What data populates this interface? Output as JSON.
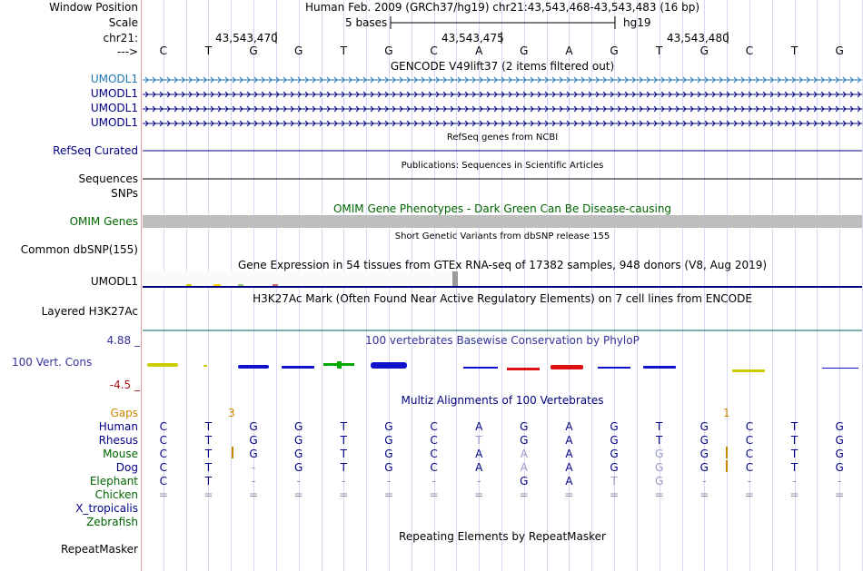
{
  "header": {
    "window_position_label": "Window Position",
    "scale_label": "Scale",
    "chrom_label": "chr21:",
    "arrow_label": "--->",
    "assembly_title": "Human Feb. 2009 (GRCh37/hg19)   chr21:43,543,468-43,543,483 (16 bp)",
    "scale_text": "5 bases",
    "scale_db": "hg19",
    "positions": [
      "43,543,470",
      "43,543,475",
      "43,543,480"
    ],
    "bases": [
      "C",
      "T",
      "G",
      "G",
      "T",
      "G",
      "C",
      "A",
      "G",
      "A",
      "G",
      "T",
      "G",
      "C",
      "T",
      "G"
    ]
  },
  "gencode": {
    "title": "GENCODE V49lift37 (2 items filtered out)",
    "genes": [
      "UMODL1",
      "UMODL1",
      "UMODL1",
      "UMODL1"
    ]
  },
  "refseq": {
    "title": "RefSeq genes from NCBI",
    "label": "RefSeq Curated"
  },
  "publications": {
    "title": "Publications: Sequences in Scientific Articles",
    "label": "Sequences"
  },
  "snps_label": "SNPs",
  "omim": {
    "title": "OMIM Gene Phenotypes - Dark Green Can Be Disease-causing",
    "label": "OMIM Genes"
  },
  "dbsnp": {
    "title": "Short Genetic Variants from dbSNP release 155",
    "label": "Common dbSNP(155)"
  },
  "gtex": {
    "title": "Gene Expression in 54 tissues from GTEx RNA-seq of 17382 samples, 948 donors (V8, Aug 2019)",
    "label": "UMODL1"
  },
  "h3k27ac": {
    "title": "H3K27Ac Mark (Often Found Near Active Regulatory Elements) on 7 cell lines from ENCODE",
    "label": "Layered H3K27Ac"
  },
  "cons": {
    "title": "100 vertebrates Basewise Conservation by PhyloP",
    "label": "100 Vert. Cons",
    "max": "4.88 _",
    "min": "-4.5 _"
  },
  "multiz": {
    "title": "Multiz Alignments of 100 Vertebrates",
    "gaps_label": "Gaps",
    "gap_marks": [
      "3",
      "1"
    ],
    "species": [
      {
        "name": "Human",
        "seq": [
          "C",
          "T",
          "G",
          "G",
          "T",
          "G",
          "C",
          "A",
          "G",
          "A",
          "G",
          "T",
          "G",
          "C",
          "T",
          "G"
        ]
      },
      {
        "name": "Rhesus",
        "seq": [
          "C",
          "T",
          "G",
          "G",
          "T",
          "G",
          "C",
          "T",
          "G",
          "A",
          "G",
          "T",
          "G",
          "C",
          "T",
          "G"
        ]
      },
      {
        "name": "Mouse",
        "seq": [
          "C",
          "T",
          "G",
          "G",
          "T",
          "G",
          "C",
          "A",
          "A",
          "A",
          "G",
          "G",
          "G",
          "C",
          "T",
          "G"
        ]
      },
      {
        "name": "Dog",
        "seq": [
          "C",
          "T",
          "-",
          "G",
          "T",
          "G",
          "C",
          "A",
          "A",
          "A",
          "G",
          "G",
          "G",
          "C",
          "T",
          "G"
        ]
      },
      {
        "name": "Elephant",
        "seq": [
          "C",
          "T",
          "-",
          "-",
          "-",
          "-",
          "-",
          "-",
          "G",
          "A",
          "T",
          "G",
          "-",
          "-",
          "-",
          "-"
        ]
      },
      {
        "name": "Chicken",
        "seq": [
          "=",
          "=",
          "=",
          "=",
          "=",
          "=",
          "=",
          "=",
          "=",
          "=",
          "=",
          "=",
          "=",
          "=",
          "=",
          "="
        ]
      },
      {
        "name": "X_tropicalis",
        "seq": []
      },
      {
        "name": "Zebrafish",
        "seq": []
      }
    ]
  },
  "repeatmasker": {
    "title": "Repeating Elements by RepeatMasker",
    "label": "RepeatMasker"
  },
  "colors": {
    "gene_blue": "#000080",
    "gencode_blue": "#1f77b4",
    "omim_green": "#006400",
    "gaps_orange": "#cc8400",
    "cons_blue": "#333399",
    "cons_red": "#aa1111",
    "frog_blue": "#000088",
    "fish_green": "#006400"
  }
}
